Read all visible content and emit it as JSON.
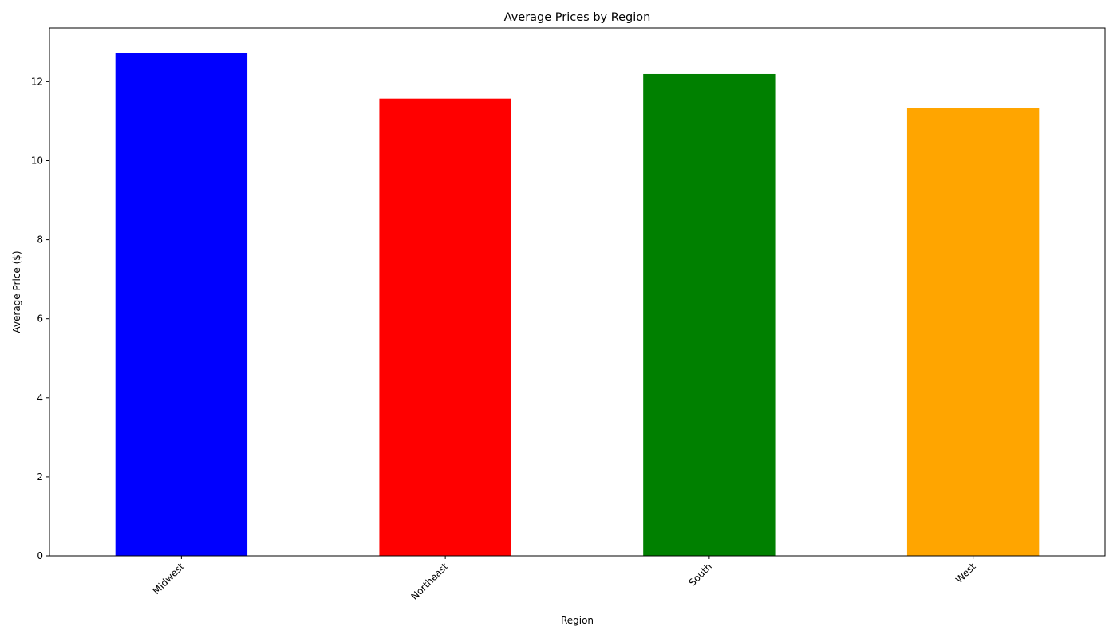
{
  "chart_data": {
    "type": "bar",
    "title": "Average Prices by Region",
    "xlabel": "Region",
    "ylabel": "Average Price ($)",
    "categories": [
      "Midwest",
      "Northeast",
      "South",
      "West"
    ],
    "values": [
      12.72,
      11.57,
      12.19,
      11.33
    ],
    "colors": [
      "#0000ff",
      "#ff0000",
      "#008000",
      "#ffa500"
    ],
    "ylim": [
      0,
      13.36
    ],
    "yticks": [
      0,
      2,
      4,
      6,
      8,
      10,
      12
    ],
    "ytick_labels": [
      "0",
      "2",
      "4",
      "6",
      "8",
      "10",
      "12"
    ],
    "xtick_rotation_deg": 45,
    "grid": false,
    "legend": "none"
  }
}
